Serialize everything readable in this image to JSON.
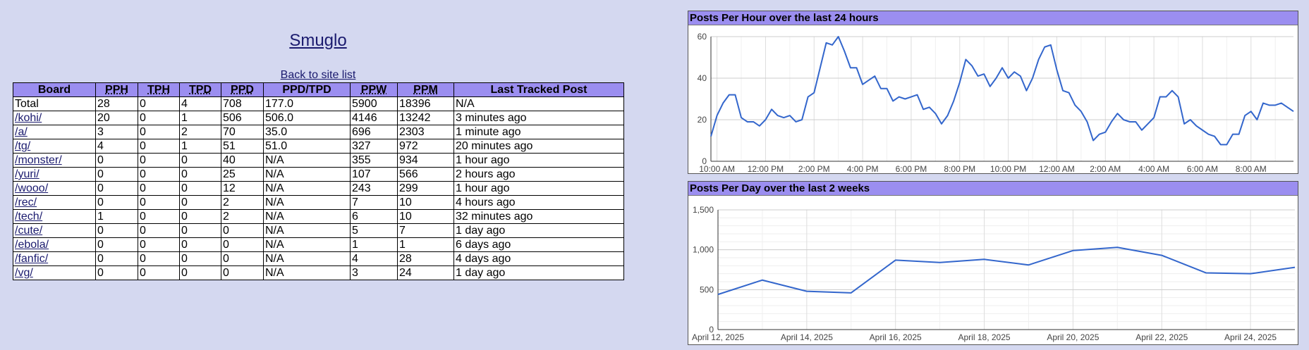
{
  "site": {
    "title": "Smuglo",
    "back_link": "Back to site list"
  },
  "table": {
    "headers": [
      {
        "label": "Board",
        "abbr": false
      },
      {
        "label": "PPH",
        "abbr": true
      },
      {
        "label": "TPH",
        "abbr": true
      },
      {
        "label": "TPD",
        "abbr": true
      },
      {
        "label": "PPD",
        "abbr": true
      },
      {
        "label": "PPD/TPD",
        "abbr": false
      },
      {
        "label": "PPW",
        "abbr": true
      },
      {
        "label": "PPM",
        "abbr": true
      },
      {
        "label": "Last Tracked Post",
        "abbr": false
      }
    ],
    "rows": [
      {
        "board": "Total",
        "link": false,
        "pph": "28",
        "tph": "0",
        "tpd": "4",
        "ppd": "708",
        "ratio": "177.0",
        "ppw": "5900",
        "ppm": "18396",
        "last": "N/A"
      },
      {
        "board": "/kohi/",
        "link": true,
        "pph": "20",
        "tph": "0",
        "tpd": "1",
        "ppd": "506",
        "ratio": "506.0",
        "ppw": "4146",
        "ppm": "13242",
        "last": "3 minutes ago"
      },
      {
        "board": "/a/",
        "link": true,
        "pph": "3",
        "tph": "0",
        "tpd": "2",
        "ppd": "70",
        "ratio": "35.0",
        "ppw": "696",
        "ppm": "2303",
        "last": "1 minute ago"
      },
      {
        "board": "/tg/",
        "link": true,
        "pph": "4",
        "tph": "0",
        "tpd": "1",
        "ppd": "51",
        "ratio": "51.0",
        "ppw": "327",
        "ppm": "972",
        "last": "20 minutes ago"
      },
      {
        "board": "/monster/",
        "link": true,
        "pph": "0",
        "tph": "0",
        "tpd": "0",
        "ppd": "40",
        "ratio": "N/A",
        "ppw": "355",
        "ppm": "934",
        "last": "1 hour ago"
      },
      {
        "board": "/yuri/",
        "link": true,
        "pph": "0",
        "tph": "0",
        "tpd": "0",
        "ppd": "25",
        "ratio": "N/A",
        "ppw": "107",
        "ppm": "566",
        "last": "2 hours ago"
      },
      {
        "board": "/wooo/",
        "link": true,
        "pph": "0",
        "tph": "0",
        "tpd": "0",
        "ppd": "12",
        "ratio": "N/A",
        "ppw": "243",
        "ppm": "299",
        "last": "1 hour ago"
      },
      {
        "board": "/rec/",
        "link": true,
        "pph": "0",
        "tph": "0",
        "tpd": "0",
        "ppd": "2",
        "ratio": "N/A",
        "ppw": "7",
        "ppm": "10",
        "last": "4 hours ago"
      },
      {
        "board": "/tech/",
        "link": true,
        "pph": "1",
        "tph": "0",
        "tpd": "0",
        "ppd": "2",
        "ratio": "N/A",
        "ppw": "6",
        "ppm": "10",
        "last": "32 minutes ago"
      },
      {
        "board": "/cute/",
        "link": true,
        "pph": "0",
        "tph": "0",
        "tpd": "0",
        "ppd": "0",
        "ratio": "N/A",
        "ppw": "5",
        "ppm": "7",
        "last": "1 day ago"
      },
      {
        "board": "/ebola/",
        "link": true,
        "pph": "0",
        "tph": "0",
        "tpd": "0",
        "ppd": "0",
        "ratio": "N/A",
        "ppw": "1",
        "ppm": "1",
        "last": "6 days ago"
      },
      {
        "board": "/fanfic/",
        "link": true,
        "pph": "0",
        "tph": "0",
        "tpd": "0",
        "ppd": "0",
        "ratio": "N/A",
        "ppw": "4",
        "ppm": "28",
        "last": "4 days ago"
      },
      {
        "board": "/vg/",
        "link": true,
        "pph": "0",
        "tph": "0",
        "tpd": "0",
        "ppd": "0",
        "ratio": "N/A",
        "ppw": "3",
        "ppm": "24",
        "last": "1 day ago"
      }
    ]
  },
  "chart_data": [
    {
      "type": "line",
      "title": "Posts Per Hour over the last 24 hours",
      "xlabel": "",
      "ylabel": "",
      "ylim": [
        0,
        60
      ],
      "yticks": [
        0,
        20,
        40,
        60
      ],
      "xtick_labels": [
        "10:00 AM",
        "12:00 PM",
        "2:00 PM",
        "4:00 PM",
        "6:00 PM",
        "8:00 PM",
        "10:00 PM",
        "12:00 AM",
        "2:00 AM",
        "4:00 AM",
        "6:00 AM",
        "8:00 AM"
      ],
      "x_interval_hours": 0.25,
      "grid": true,
      "color": "#3366cc",
      "values": [
        12,
        22,
        28,
        32,
        32,
        21,
        19,
        19,
        17,
        20,
        25,
        22,
        21,
        22,
        19,
        20,
        31,
        33,
        45,
        57,
        56,
        60,
        53,
        45,
        45,
        37,
        39,
        41,
        35,
        35,
        29,
        31,
        30,
        31,
        32,
        25,
        26,
        23,
        18,
        22,
        29,
        38,
        49,
        46,
        41,
        42,
        36,
        40,
        45,
        40,
        43,
        41,
        34,
        40,
        49,
        55,
        56,
        44,
        34,
        33,
        27,
        24,
        19,
        10,
        13,
        14,
        19,
        23,
        20,
        19,
        19,
        15,
        18,
        21,
        31,
        31,
        34,
        31,
        18,
        20,
        17,
        15,
        13,
        12,
        8,
        8,
        13,
        13,
        22,
        24,
        20,
        28,
        27,
        27,
        28,
        26,
        24
      ]
    },
    {
      "type": "line",
      "title": "Posts Per Day over the last 2 weeks",
      "xlabel": "",
      "ylabel": "",
      "ylim": [
        0,
        1500
      ],
      "yticks": [
        0,
        500,
        1000,
        1500
      ],
      "ytick_labels": [
        "0",
        "500",
        "1,000",
        "1,500"
      ],
      "xtick_labels": [
        "April 12, 2025",
        "April 14, 2025",
        "April 16, 2025",
        "April 18, 2025",
        "April 20, 2025",
        "April 22, 2025",
        "April 24, 2025"
      ],
      "x": [
        "April 12, 2025",
        "April 13, 2025",
        "April 14, 2025",
        "April 15, 2025",
        "April 16, 2025",
        "April 17, 2025",
        "April 18, 2025",
        "April 19, 2025",
        "April 20, 2025",
        "April 21, 2025",
        "April 22, 2025",
        "April 23, 2025",
        "April 24, 2025",
        "April 25, 2025"
      ],
      "grid": true,
      "color": "#3366cc",
      "values": [
        440,
        620,
        480,
        460,
        870,
        840,
        880,
        810,
        990,
        1030,
        930,
        710,
        700,
        780
      ]
    }
  ]
}
